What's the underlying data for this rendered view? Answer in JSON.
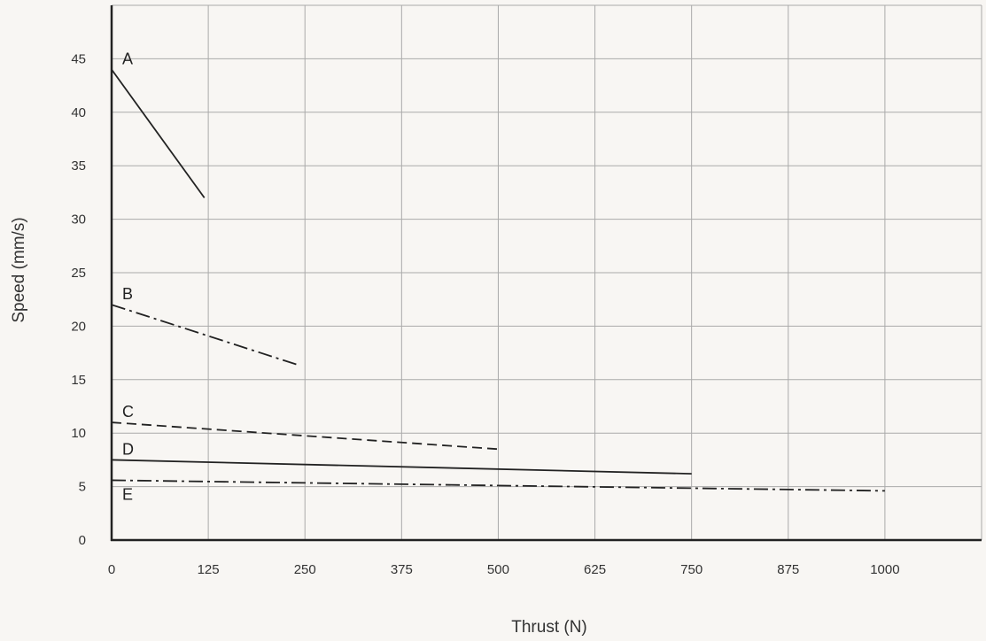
{
  "chart_data": {
    "type": "line",
    "title": "",
    "xlabel": "Thrust (N)",
    "ylabel": "Speed (mm/s)",
    "x_ticks": [
      "0",
      "125",
      "250",
      "375",
      "500",
      "625",
      "750",
      "875",
      "1000"
    ],
    "y_ticks": [
      "0",
      "5",
      "10",
      "15",
      "20",
      "25",
      "30",
      "35",
      "40",
      "45"
    ],
    "xlim": [
      0,
      1125
    ],
    "ylim": [
      0,
      50
    ],
    "grid": true,
    "series": [
      {
        "name": "A",
        "style": "solid",
        "x": [
          0,
          120
        ],
        "y": [
          44,
          32
        ]
      },
      {
        "name": "B",
        "style": "dashdot",
        "x": [
          0,
          240
        ],
        "y": [
          22,
          16.4
        ]
      },
      {
        "name": "C",
        "style": "dashed",
        "x": [
          0,
          500
        ],
        "y": [
          11,
          8.5
        ]
      },
      {
        "name": "D",
        "style": "solid",
        "x": [
          0,
          750
        ],
        "y": [
          7.5,
          6.2
        ]
      },
      {
        "name": "E",
        "style": "dashdot",
        "x": [
          0,
          1000
        ],
        "y": [
          5.6,
          4.6
        ]
      }
    ],
    "colors": {
      "background": "#f8f6f3",
      "grid": "#aaaaaa",
      "axis": "#222222",
      "line": "#222222"
    }
  }
}
